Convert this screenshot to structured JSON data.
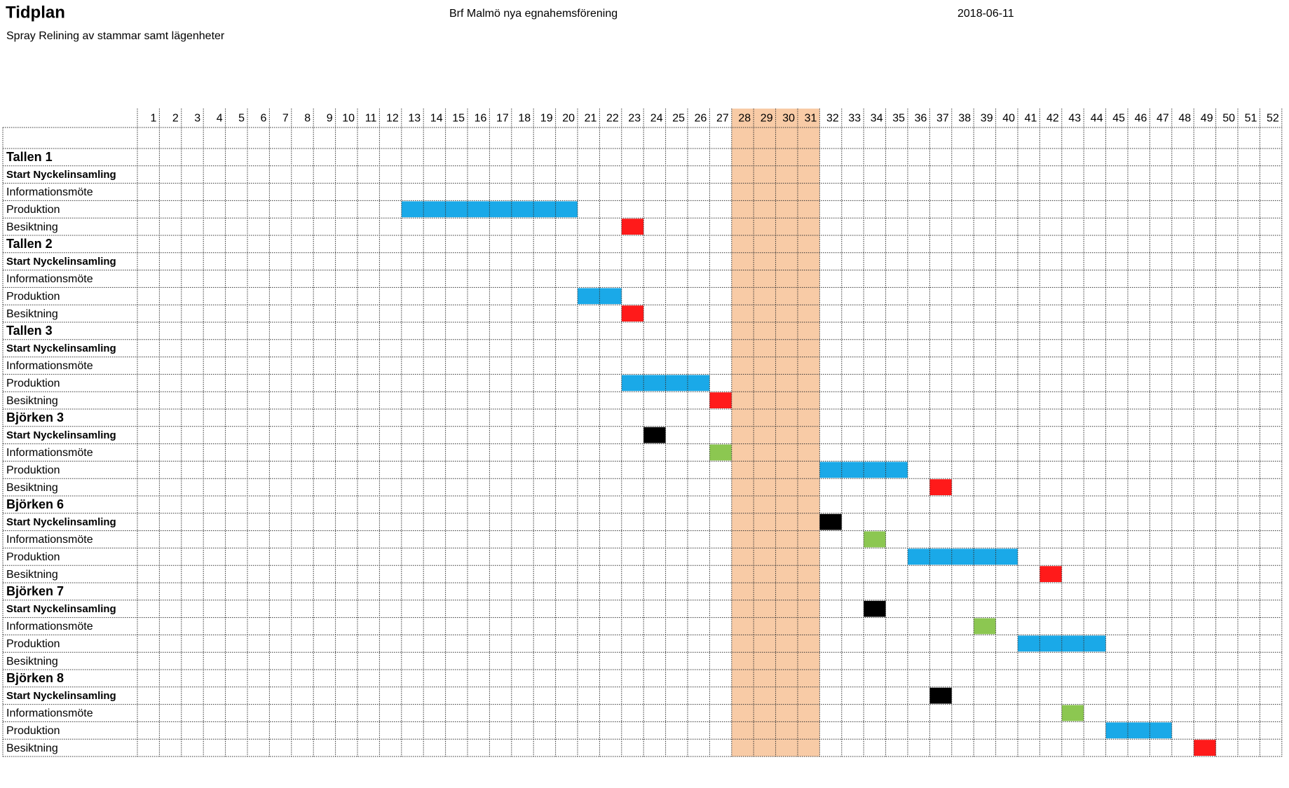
{
  "header": {
    "title": "Tidplan",
    "subtitle": "Spray Relining av stammar samt lägenheter",
    "organization": "Brf Malmö nya egnahemsförening",
    "date": "2018-06-11"
  },
  "weeks": [
    1,
    2,
    3,
    4,
    5,
    6,
    7,
    8,
    9,
    10,
    11,
    12,
    13,
    14,
    15,
    16,
    17,
    18,
    19,
    20,
    21,
    22,
    23,
    24,
    25,
    26,
    27,
    28,
    29,
    30,
    31,
    32,
    33,
    34,
    35,
    36,
    37,
    38,
    39,
    40,
    41,
    42,
    43,
    44,
    45,
    46,
    47,
    48,
    49,
    50,
    51,
    52
  ],
  "highlight_weeks": [
    28,
    31
  ],
  "highlight_color": "#f8cba6",
  "groups": [
    {
      "name": "Tallen 1",
      "rows": [
        {
          "label": "Start Nyckelinsamling"
        },
        {
          "label": "Informationsmöte"
        },
        {
          "label": "Produktion",
          "span": [
            13,
            20
          ],
          "color": "#1aa9e8"
        },
        {
          "label": "Besiktning",
          "span": [
            23,
            23
          ],
          "color": "#ff1a1a"
        }
      ]
    },
    {
      "name": "Tallen 2",
      "rows": [
        {
          "label": "Start Nyckelinsamling"
        },
        {
          "label": "Informationsmöte"
        },
        {
          "label": "Produktion",
          "span": [
            21,
            22
          ],
          "color": "#1aa9e8"
        },
        {
          "label": "Besiktning",
          "span": [
            23,
            23
          ],
          "color": "#ff1a1a"
        }
      ]
    },
    {
      "name": "Tallen 3",
      "rows": [
        {
          "label": "Start Nyckelinsamling"
        },
        {
          "label": "Informationsmöte"
        },
        {
          "label": "Produktion",
          "span": [
            23,
            26
          ],
          "color": "#1aa9e8"
        },
        {
          "label": "Besiktning",
          "span": [
            27,
            27
          ],
          "color": "#ff1a1a"
        }
      ]
    },
    {
      "name": "Björken 3",
      "rows": [
        {
          "label": "Start Nyckelinsamling",
          "span": [
            24,
            24
          ],
          "color": "#000000"
        },
        {
          "label": "Informationsmöte",
          "span": [
            27,
            27
          ],
          "color": "#8cc751"
        },
        {
          "label": "Produktion",
          "span": [
            32,
            35
          ],
          "color": "#1aa9e8"
        },
        {
          "label": "Besiktning",
          "span": [
            37,
            37
          ],
          "color": "#ff1a1a"
        }
      ]
    },
    {
      "name": "Björken 6",
      "rows": [
        {
          "label": "Start Nyckelinsamling",
          "span": [
            32,
            32
          ],
          "color": "#000000"
        },
        {
          "label": "Informationsmöte",
          "span": [
            34,
            34
          ],
          "color": "#8cc751"
        },
        {
          "label": "Produktion",
          "span": [
            36,
            40
          ],
          "color": "#1aa9e8"
        },
        {
          "label": "Besiktning",
          "span": [
            42,
            42
          ],
          "color": "#ff1a1a"
        }
      ]
    },
    {
      "name": "Björken 7",
      "rows": [
        {
          "label": "Start Nyckelinsamling",
          "span": [
            34,
            34
          ],
          "color": "#000000"
        },
        {
          "label": "Informationsmöte",
          "span": [
            39,
            39
          ],
          "color": "#8cc751"
        },
        {
          "label": "Produktion",
          "span": [
            41,
            44
          ],
          "color": "#1aa9e8"
        },
        {
          "label": "Besiktning"
        }
      ]
    },
    {
      "name": "Björken 8",
      "rows": [
        {
          "label": "Start Nyckelinsamling",
          "span": [
            37,
            37
          ],
          "color": "#000000"
        },
        {
          "label": "Informationsmöte",
          "span": [
            43,
            43
          ],
          "color": "#8cc751"
        },
        {
          "label": "Produktion",
          "span": [
            45,
            47
          ],
          "color": "#1aa9e8"
        },
        {
          "label": "Besiktning",
          "span": [
            49,
            49
          ],
          "color": "#ff1a1a"
        }
      ]
    }
  ]
}
